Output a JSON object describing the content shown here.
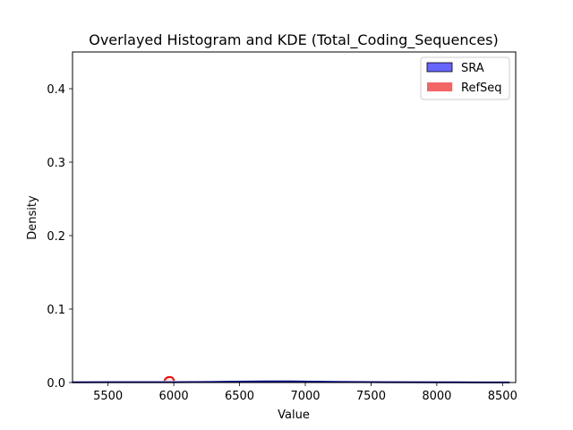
{
  "chart_data": {
    "type": "histogram",
    "title": "Overlayed Histogram and KDE (Total_Coding_Sequences)",
    "xlabel": "Value",
    "ylabel": "Density",
    "xlim": [
      5230,
      8600
    ],
    "ylim": [
      0.0,
      0.45
    ],
    "xticks": [
      5500,
      6000,
      6500,
      7000,
      7500,
      8000,
      8500
    ],
    "xtick_labels": [
      "5500",
      "6000",
      "6500",
      "7000",
      "7500",
      "8000",
      "8500"
    ],
    "yticks": [
      0.0,
      0.1,
      0.2,
      0.3,
      0.4
    ],
    "ytick_labels": [
      "0.0",
      "0.1",
      "0.2",
      "0.3",
      "0.4"
    ],
    "grid": false,
    "legend": {
      "placement": "top-right",
      "entries": [
        {
          "name": "SRA",
          "color": "#6666ff",
          "edge": "#000000"
        },
        {
          "name": "RefSeq",
          "color": "#f26666",
          "edge": "#f26666"
        }
      ]
    },
    "series": [
      {
        "name": "SRA",
        "kind": "histogram+kde",
        "bar_color": "#6666ff",
        "kde_color": "#00008b",
        "x": [
          5230,
          5500,
          6000,
          6300,
          6500,
          6700,
          6900,
          7100,
          7300,
          7600,
          8000,
          8300,
          8550
        ],
        "density": [
          0.0003,
          0.0004,
          0.0005,
          0.0008,
          0.0012,
          0.0016,
          0.0015,
          0.0011,
          0.0007,
          0.0004,
          0.0003,
          0.0002,
          0.0001
        ]
      },
      {
        "name": "RefSeq",
        "kind": "histogram+kde",
        "bar_color": "#f26666",
        "kde_color": "#ff0000",
        "x": [
          5930,
          5945,
          5960,
          5975,
          5990,
          6000
        ],
        "density": [
          0.0035,
          0.0065,
          0.0075,
          0.0075,
          0.0065,
          0.0035
        ]
      }
    ]
  }
}
